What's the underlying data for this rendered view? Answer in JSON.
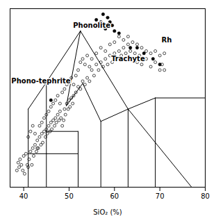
{
  "chart_data": {
    "type": "scatter",
    "xlabel": "SiO₂ (%)",
    "xlim": [
      37,
      80
    ],
    "xticks": [
      40,
      50,
      60,
      70,
      80
    ],
    "ylim": [
      0,
      16
    ],
    "tick_labels": "x",
    "grid": false,
    "series": [
      {
        "type": "scatter",
        "marker": "open",
        "color": "black",
        "x": [
          38.5,
          38.8,
          39.0,
          39.2,
          39.5,
          39.8,
          40.0,
          40.2,
          40.5,
          40.8,
          41.0,
          41.2,
          41.5,
          41.8,
          42.0,
          42.2,
          42.5,
          42.8,
          43.0,
          43.2,
          43.5,
          43.8,
          44.0,
          44.2,
          44.5,
          44.8,
          45.0,
          45.2,
          45.5,
          45.8,
          46.0,
          46.2,
          46.5,
          46.8,
          47.0,
          47.2,
          47.5,
          47.8,
          48.0,
          48.2,
          48.5,
          48.8,
          49.0,
          49.2,
          49.5,
          49.8,
          50.0,
          50.2,
          50.5,
          50.8,
          51.0,
          51.5,
          52.0,
          52.5,
          53.0,
          53.5,
          54.0,
          54.5,
          55.0,
          55.5,
          56.0,
          56.5,
          57.0,
          57.5,
          58.0,
          58.5,
          59.0,
          59.5,
          60.0,
          60.5,
          61.0,
          61.5,
          62.0,
          62.5,
          63.0,
          63.5,
          64.0,
          64.5,
          65.0,
          65.5,
          66.0,
          67.0,
          68.0,
          69.0,
          70.0,
          70.5,
          71.0,
          41.0,
          41.5,
          42.0,
          42.5,
          43.0,
          43.5,
          44.0,
          44.5,
          45.0,
          45.5,
          46.0,
          46.5,
          47.0,
          47.5,
          48.0,
          48.5,
          49.0,
          49.5,
          50.0,
          50.5,
          51.0,
          51.5,
          52.0,
          52.5,
          53.0,
          53.5,
          54.0,
          54.5,
          55.0,
          56.0,
          57.0,
          58.0,
          59.0,
          60.0,
          61.0,
          62.0,
          63.0,
          64.0,
          65.0,
          66.0,
          67.0,
          68.0,
          69.0,
          70.0,
          71.0
        ],
        "values": [
          1.5,
          2.2,
          1.8,
          2.5,
          2.0,
          1.5,
          2.8,
          1.2,
          3.0,
          2.0,
          1.8,
          2.5,
          3.2,
          2.0,
          3.5,
          2.8,
          3.8,
          3.2,
          4.2,
          3.5,
          4.5,
          3.8,
          4.8,
          4.0,
          5.0,
          4.5,
          5.2,
          4.8,
          5.5,
          5.0,
          5.8,
          5.2,
          6.0,
          5.5,
          6.2,
          5.8,
          6.5,
          6.0,
          6.8,
          6.2,
          5.5,
          6.0,
          7.0,
          6.5,
          7.5,
          7.0,
          7.8,
          7.2,
          8.0,
          7.5,
          8.2,
          8.5,
          9.0,
          8.8,
          9.5,
          9.2,
          9.8,
          9.5,
          10.5,
          10.0,
          11.0,
          10.5,
          11.2,
          10.8,
          11.5,
          11.0,
          11.8,
          11.2,
          12.0,
          11.5,
          12.2,
          11.8,
          12.5,
          12.0,
          12.8,
          12.2,
          11.5,
          12.0,
          11.2,
          11.8,
          11.0,
          11.5,
          10.8,
          11.2,
          10.5,
          11.0,
          10.5,
          4.5,
          5.0,
          5.5,
          4.8,
          3.5,
          5.5,
          5.8,
          6.2,
          6.5,
          6.8,
          7.2,
          7.5,
          7.8,
          8.2,
          7.5,
          8.5,
          8.8,
          9.2,
          9.5,
          9.8,
          9.2,
          10.0,
          10.5,
          11.2,
          11.5,
          11.0,
          11.8,
          10.8,
          11.5,
          12.0,
          12.5,
          12.2,
          12.8,
          13.0,
          13.5,
          13.2,
          13.5,
          13.0,
          12.8,
          12.5,
          12.2,
          12.0,
          12.2,
          11.8,
          12.0
        ]
      },
      {
        "type": "scatter",
        "marker": "filled",
        "color": "black",
        "x": [
          46.0,
          55.5,
          56.0,
          57.0,
          57.5,
          58.0,
          58.5,
          59.0,
          59.5,
          60.0,
          61.0,
          63.5,
          65.0,
          66.5,
          68.5,
          70.0
        ],
        "values": [
          7.8,
          14.5,
          15.0,
          14.8,
          15.5,
          14.2,
          15.2,
          14.8,
          14.5,
          14.0,
          13.8,
          12.5,
          12.5,
          12.0,
          11.5,
          11.0
        ]
      },
      {
        "type": "line",
        "color": "black",
        "segments": [
          [
            [
              41,
              0
            ],
            [
              41,
              7
            ]
          ],
          [
            [
              41,
              7
            ],
            [
              45,
              9.4
            ]
          ],
          [
            [
              45,
              9.4
            ],
            [
              52.5,
              14
            ]
          ],
          [
            [
              45,
              0
            ],
            [
              45,
              5
            ]
          ],
          [
            [
              45,
              5
            ],
            [
              52,
              5
            ]
          ],
          [
            [
              52,
              5
            ],
            [
              52,
              0
            ]
          ],
          [
            [
              45,
              5
            ],
            [
              45,
              9.4
            ]
          ],
          [
            [
              49.4,
              7.3
            ],
            [
              52.5,
              14
            ]
          ],
          [
            [
              49.4,
              7.3
            ],
            [
              53.0,
              9.3
            ]
          ],
          [
            [
              53.0,
              9.3
            ],
            [
              57,
              5.9
            ]
          ],
          [
            [
              57,
              0
            ],
            [
              57,
              5.9
            ]
          ],
          [
            [
              57,
              5.9
            ],
            [
              63,
              7
            ]
          ],
          [
            [
              63,
              0
            ],
            [
              63,
              7
            ]
          ],
          [
            [
              63,
              7
            ],
            [
              69,
              8
            ]
          ],
          [
            [
              69,
              8
            ],
            [
              69,
              0
            ]
          ],
          [
            [
              52.5,
              14
            ],
            [
              63,
              7
            ]
          ],
          [
            [
              63,
              7
            ],
            [
              77,
              0
            ]
          ],
          [
            [
              69,
              8
            ],
            [
              80,
              8
            ]
          ],
          [
            [
              41,
              3
            ],
            [
              45,
              3
            ]
          ],
          [
            [
              45,
              3
            ],
            [
              52,
              3
            ]
          ]
        ]
      }
    ],
    "annotations": [
      {
        "text": "Phonolite",
        "x": 55,
        "y": 14.5
      },
      {
        "text": "Phono-tephrite",
        "x": 43.8,
        "y": 9.5
      },
      {
        "text": "Trachyte",
        "x": 63,
        "y": 11.5
      },
      {
        "text": "Rh",
        "x": 71.5,
        "y": 13.2
      }
    ]
  }
}
